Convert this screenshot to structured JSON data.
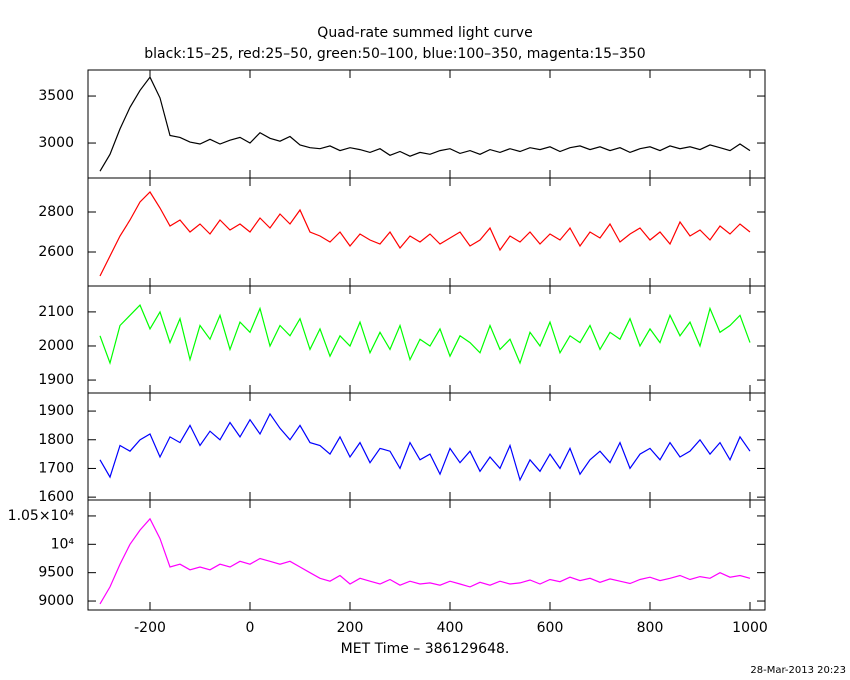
{
  "chart_data": {
    "type": "line",
    "title": "Quad-rate summed light curve",
    "subtitle": "black:15–25, red:25–50, green:50–100, blue:100–350, magenta:15–350",
    "x_label": "MET Time – 386129648.",
    "footer": "28-Mar-2013 20:23",
    "xlim": [
      -324,
      1030
    ],
    "xticks": [
      -200,
      0,
      200,
      400,
      600,
      800,
      1000
    ],
    "x": [
      -300,
      -280,
      -260,
      -240,
      -220,
      -200,
      -180,
      -160,
      -140,
      -120,
      -100,
      -80,
      -60,
      -40,
      -20,
      0,
      20,
      40,
      60,
      80,
      100,
      120,
      140,
      160,
      180,
      200,
      220,
      240,
      260,
      280,
      300,
      320,
      340,
      360,
      380,
      400,
      420,
      440,
      460,
      480,
      500,
      520,
      540,
      560,
      580,
      600,
      620,
      640,
      660,
      680,
      700,
      720,
      740,
      760,
      780,
      800,
      820,
      840,
      860,
      880,
      900,
      920,
      940,
      960,
      980,
      1000
    ],
    "series": [
      {
        "color": "#000000",
        "ylim": [
          2628,
          3777
        ],
        "yticks": [
          3000,
          3500
        ],
        "values": [
          2700,
          2880,
          3150,
          3380,
          3560,
          3700,
          3480,
          3080,
          3060,
          3010,
          2990,
          3040,
          2990,
          3030,
          3060,
          3000,
          3110,
          3050,
          3020,
          3070,
          2980,
          2950,
          2940,
          2970,
          2920,
          2950,
          2930,
          2900,
          2940,
          2870,
          2910,
          2860,
          2900,
          2880,
          2920,
          2940,
          2890,
          2920,
          2880,
          2930,
          2900,
          2940,
          2910,
          2950,
          2930,
          2960,
          2910,
          2950,
          2970,
          2930,
          2960,
          2920,
          2950,
          2900,
          2940,
          2960,
          2920,
          2970,
          2940,
          2960,
          2930,
          2980,
          2950,
          2920,
          2990,
          2920
        ]
      },
      {
        "color": "#ff0000",
        "ylim": [
          2430,
          2970
        ],
        "yticks": [
          2600,
          2800
        ],
        "values": [
          2480,
          2580,
          2680,
          2760,
          2850,
          2900,
          2820,
          2730,
          2760,
          2700,
          2740,
          2690,
          2760,
          2710,
          2740,
          2700,
          2770,
          2720,
          2790,
          2740,
          2810,
          2700,
          2680,
          2650,
          2700,
          2630,
          2690,
          2660,
          2640,
          2700,
          2620,
          2680,
          2650,
          2690,
          2640,
          2670,
          2700,
          2630,
          2660,
          2720,
          2610,
          2680,
          2650,
          2700,
          2640,
          2690,
          2660,
          2720,
          2630,
          2700,
          2670,
          2740,
          2650,
          2690,
          2720,
          2660,
          2700,
          2640,
          2750,
          2680,
          2710,
          2660,
          2730,
          2690,
          2740,
          2700
        ]
      },
      {
        "color": "#00ff00",
        "ylim": [
          1862,
          2176
        ],
        "yticks": [
          1900,
          2000,
          2100
        ],
        "values": [
          2030,
          1950,
          2060,
          2090,
          2120,
          2050,
          2100,
          2010,
          2080,
          1960,
          2060,
          2020,
          2090,
          1990,
          2070,
          2040,
          2110,
          2000,
          2060,
          2030,
          2080,
          1990,
          2050,
          1970,
          2030,
          2000,
          2070,
          1980,
          2040,
          1990,
          2060,
          1960,
          2020,
          2000,
          2050,
          1970,
          2030,
          2010,
          1980,
          2060,
          1990,
          2020,
          1950,
          2040,
          2000,
          2070,
          1980,
          2030,
          2010,
          2060,
          1990,
          2040,
          2020,
          2080,
          2000,
          2050,
          2010,
          2090,
          2030,
          2070,
          2000,
          2110,
          2040,
          2060,
          2090,
          2010
        ]
      },
      {
        "color": "#0000ff",
        "ylim": [
          1590,
          1963
        ],
        "yticks": [
          1600,
          1700,
          1800,
          1900
        ],
        "values": [
          1730,
          1670,
          1780,
          1760,
          1800,
          1820,
          1740,
          1810,
          1790,
          1850,
          1780,
          1830,
          1800,
          1860,
          1810,
          1870,
          1820,
          1890,
          1840,
          1800,
          1850,
          1790,
          1780,
          1750,
          1810,
          1740,
          1790,
          1720,
          1770,
          1760,
          1700,
          1790,
          1730,
          1750,
          1680,
          1770,
          1720,
          1760,
          1690,
          1740,
          1700,
          1780,
          1660,
          1730,
          1690,
          1750,
          1700,
          1770,
          1680,
          1730,
          1760,
          1720,
          1790,
          1700,
          1750,
          1770,
          1730,
          1790,
          1740,
          1760,
          1800,
          1750,
          1790,
          1730,
          1810,
          1760
        ]
      },
      {
        "color": "#ff00ff",
        "ylim": [
          8842,
          10781
        ],
        "yticks": [
          9000,
          9500,
          {
            "value": 10000,
            "label": "10⁴"
          },
          {
            "value": 10500,
            "label": "1.05×10⁴"
          }
        ],
        "values": [
          8950,
          9250,
          9650,
          10000,
          10250,
          10450,
          10100,
          9600,
          9650,
          9550,
          9600,
          9550,
          9650,
          9600,
          9700,
          9650,
          9750,
          9700,
          9650,
          9700,
          9600,
          9500,
          9400,
          9350,
          9450,
          9300,
          9400,
          9350,
          9300,
          9380,
          9280,
          9350,
          9300,
          9320,
          9280,
          9350,
          9300,
          9250,
          9330,
          9280,
          9350,
          9300,
          9320,
          9370,
          9300,
          9380,
          9340,
          9420,
          9360,
          9400,
          9330,
          9390,
          9350,
          9310,
          9380,
          9420,
          9360,
          9400,
          9450,
          9380,
          9430,
          9400,
          9500,
          9420,
          9450,
          9400
        ]
      }
    ]
  }
}
